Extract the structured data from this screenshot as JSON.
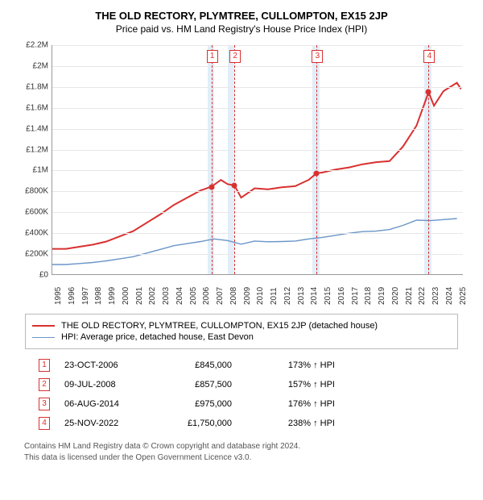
{
  "title": "THE OLD RECTORY, PLYMTREE, CULLOMPTON, EX15 2JP",
  "subtitle": "Price paid vs. HM Land Registry's House Price Index (HPI)",
  "chart": {
    "type": "line",
    "x_start": 1995,
    "x_end": 2025.5,
    "ylim": [
      0,
      2200000
    ],
    "ytick_step": 200000,
    "yticks": [
      "£0",
      "£200K",
      "£400K",
      "£600K",
      "£800K",
      "£1M",
      "£1.2M",
      "£1.4M",
      "£1.6M",
      "£1.8M",
      "£2M",
      "£2.2M"
    ],
    "xticks": [
      1995,
      1996,
      1997,
      1998,
      1999,
      2000,
      2001,
      2002,
      2003,
      2004,
      2005,
      2006,
      2007,
      2008,
      2009,
      2010,
      2011,
      2012,
      2013,
      2014,
      2015,
      2016,
      2017,
      2018,
      2019,
      2020,
      2021,
      2022,
      2023,
      2024,
      2025
    ],
    "grid_color": "#e8e8e8",
    "band_color": "#e2eef8",
    "bands_x": [
      [
        2006.5,
        2007.0
      ],
      [
        2008.0,
        2008.5
      ],
      [
        2014.3,
        2014.8
      ],
      [
        2022.6,
        2023.1
      ]
    ],
    "markers_x": [
      2006.8,
      2008.5,
      2014.6,
      2022.9
    ],
    "red": "#d93030",
    "blue": "#6a96c8",
    "line_width_red": 2,
    "line_width_blue": 1.4,
    "red_series": [
      [
        1995,
        250000
      ],
      [
        1996,
        250000
      ],
      [
        1997,
        270000
      ],
      [
        1998,
        290000
      ],
      [
        1999,
        320000
      ],
      [
        2000,
        370000
      ],
      [
        2001,
        420000
      ],
      [
        2002,
        500000
      ],
      [
        2003,
        580000
      ],
      [
        2004,
        670000
      ],
      [
        2005,
        740000
      ],
      [
        2006,
        810000
      ],
      [
        2006.8,
        845000
      ],
      [
        2007.5,
        910000
      ],
      [
        2008,
        870000
      ],
      [
        2008.5,
        857500
      ],
      [
        2009,
        740000
      ],
      [
        2010,
        830000
      ],
      [
        2011,
        820000
      ],
      [
        2012,
        840000
      ],
      [
        2013,
        850000
      ],
      [
        2014,
        910000
      ],
      [
        2014.6,
        975000
      ],
      [
        2015,
        980000
      ],
      [
        2016,
        1010000
      ],
      [
        2017,
        1030000
      ],
      [
        2018,
        1060000
      ],
      [
        2019,
        1080000
      ],
      [
        2020,
        1090000
      ],
      [
        2021,
        1230000
      ],
      [
        2022,
        1430000
      ],
      [
        2022.9,
        1750000
      ],
      [
        2023.3,
        1620000
      ],
      [
        2024,
        1760000
      ],
      [
        2025,
        1840000
      ],
      [
        2025.3,
        1780000
      ]
    ],
    "blue_series": [
      [
        1995,
        100000
      ],
      [
        1996,
        100000
      ],
      [
        1997,
        110000
      ],
      [
        1998,
        120000
      ],
      [
        1999,
        135000
      ],
      [
        2000,
        155000
      ],
      [
        2001,
        175000
      ],
      [
        2002,
        210000
      ],
      [
        2003,
        245000
      ],
      [
        2004,
        280000
      ],
      [
        2005,
        300000
      ],
      [
        2006,
        320000
      ],
      [
        2007,
        345000
      ],
      [
        2008,
        330000
      ],
      [
        2009,
        295000
      ],
      [
        2010,
        325000
      ],
      [
        2011,
        318000
      ],
      [
        2012,
        320000
      ],
      [
        2013,
        325000
      ],
      [
        2014,
        345000
      ],
      [
        2015,
        360000
      ],
      [
        2016,
        380000
      ],
      [
        2017,
        400000
      ],
      [
        2018,
        415000
      ],
      [
        2019,
        420000
      ],
      [
        2020,
        435000
      ],
      [
        2021,
        475000
      ],
      [
        2022,
        525000
      ],
      [
        2023,
        520000
      ],
      [
        2024,
        530000
      ],
      [
        2025,
        540000
      ]
    ],
    "sale_points": [
      [
        2006.8,
        845000
      ],
      [
        2008.5,
        857500
      ],
      [
        2014.6,
        975000
      ],
      [
        2022.9,
        1750000
      ]
    ]
  },
  "legend": {
    "items": [
      {
        "color": "#d93030",
        "width": 2,
        "label": "THE OLD RECTORY, PLYMTREE, CULLOMPTON, EX15 2JP (detached house)"
      },
      {
        "color": "#6a96c8",
        "width": 1.4,
        "label": "HPI: Average price, detached house, East Devon"
      }
    ]
  },
  "transactions": [
    {
      "n": "1",
      "date": "23-OCT-2006",
      "price": "£845,000",
      "pct": "173% ↑ HPI"
    },
    {
      "n": "2",
      "date": "09-JUL-2008",
      "price": "£857,500",
      "pct": "157% ↑ HPI"
    },
    {
      "n": "3",
      "date": "06-AUG-2014",
      "price": "£975,000",
      "pct": "176% ↑ HPI"
    },
    {
      "n": "4",
      "date": "25-NOV-2022",
      "price": "£1,750,000",
      "pct": "238% ↑ HPI"
    }
  ],
  "footer_line1": "Contains HM Land Registry data © Crown copyright and database right 2024.",
  "footer_line2": "This data is licensed under the Open Government Licence v3.0."
}
